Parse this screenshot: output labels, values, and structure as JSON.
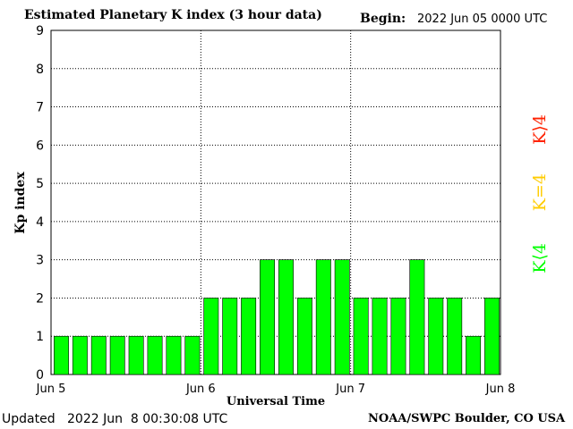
{
  "header": {
    "title": "Estimated Planetary K index (3 hour data)",
    "begin_label": "Begin:",
    "begin_value": "2022 Jun 05 0000 UTC"
  },
  "footer": {
    "updated_label": "Updated",
    "updated_value": "2022 Jun  8 00:30:08 UTC",
    "credit": "NOAA/SWPC Boulder, CO USA"
  },
  "legend": {
    "high": "K⟩4",
    "equal": "K=4",
    "low": "K⟨4"
  },
  "colors": {
    "low": "#00ff00",
    "equal": "#ffcc00",
    "high": "#ff2200"
  },
  "chart_data": {
    "type": "bar",
    "title": "Estimated Planetary K index (3 hour data)",
    "xlabel": "Universal Time",
    "ylabel": "Kp index",
    "ylim": [
      0,
      9
    ],
    "yticks": [
      "0",
      "1",
      "2",
      "3",
      "4",
      "5",
      "6",
      "7",
      "8",
      "9"
    ],
    "xticks": [
      "Jun 5",
      "Jun 6",
      "Jun 7",
      "Jun 8"
    ],
    "grid": true,
    "categories": [
      "Jun 5 00",
      "Jun 5 03",
      "Jun 5 06",
      "Jun 5 09",
      "Jun 5 12",
      "Jun 5 15",
      "Jun 5 18",
      "Jun 5 21",
      "Jun 6 00",
      "Jun 6 03",
      "Jun 6 06",
      "Jun 6 09",
      "Jun 6 12",
      "Jun 6 15",
      "Jun 6 18",
      "Jun 6 21",
      "Jun 7 00",
      "Jun 7 03",
      "Jun 7 06",
      "Jun 7 09",
      "Jun 7 12",
      "Jun 7 15",
      "Jun 7 18",
      "Jun 7 21"
    ],
    "values": [
      1,
      1,
      1,
      1,
      1,
      1,
      1,
      1,
      2,
      2,
      2,
      3,
      3,
      2,
      3,
      3,
      2,
      2,
      2,
      3,
      2,
      2,
      1,
      2
    ]
  }
}
